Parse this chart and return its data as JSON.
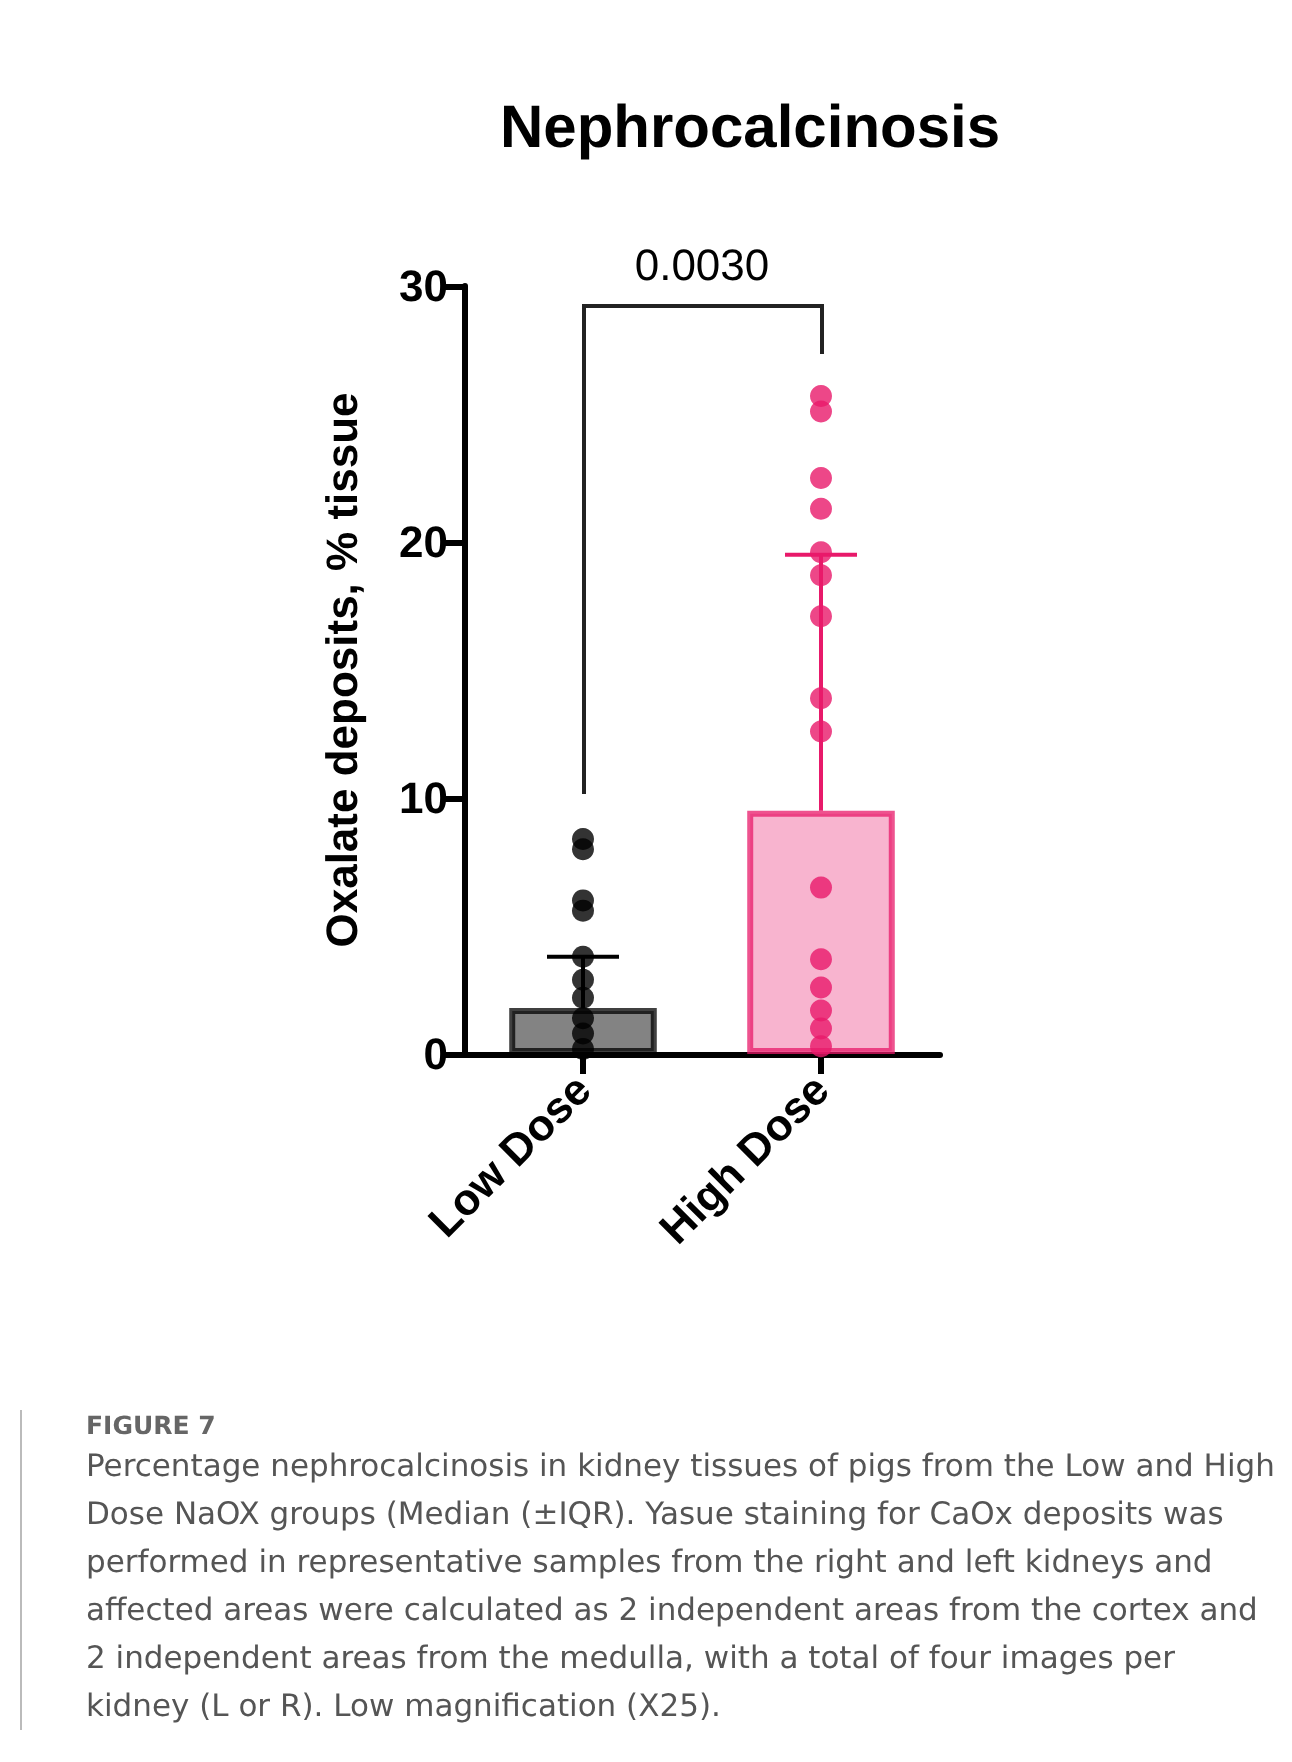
{
  "chart_data": {
    "type": "bar",
    "title": "Nephrocalcinosis",
    "ylabel": "Oxalate deposits, % tissue",
    "categories": [
      "Low Dose",
      "High Dose"
    ],
    "series": [
      {
        "colors": [
          "#5a5a5a",
          "#f59bbf"
        ],
        "values": [
          1.8,
          9.5
        ],
        "errors": [
          [
            1.8,
            3.8
          ],
          [
            9.5,
            19.5
          ]
        ]
      },
      {
        "type": "scatter",
        "color": "#000000",
        "x": [
          "Low Dose",
          "Low Dose",
          "Low Dose",
          "Low Dose",
          "Low Dose",
          "Low Dose",
          "Low Dose",
          "Low Dose",
          "Low Dose",
          "Low Dose"
        ],
        "values": [
          8.0,
          8.4,
          6.0,
          5.6,
          3.8,
          2.9,
          2.2,
          1.4,
          0.8,
          0.2
        ]
      },
      {
        "type": "scatter",
        "color": "#e8196a",
        "x": [
          "High Dose",
          "High Dose",
          "High Dose",
          "High Dose",
          "High Dose",
          "High Dose",
          "High Dose",
          "High Dose",
          "High Dose",
          "High Dose",
          "High Dose",
          "High Dose",
          "High Dose",
          "High Dose",
          "High Dose"
        ],
        "values": [
          25.1,
          25.7,
          22.5,
          21.3,
          19.6,
          18.7,
          17.1,
          13.9,
          12.6,
          6.5,
          3.7,
          2.6,
          1.7,
          1.0,
          0.3
        ]
      }
    ],
    "ylim": [
      0,
      30
    ],
    "yticks": [
      0,
      10,
      20,
      30
    ],
    "grid": false,
    "marker": "circle",
    "annotations": [
      "0.0030",
      "FIGURE 7",
      "Percentage nephrocalcinosis in kidney tissues of pigs from the Low and High Dose NaOX groups (Median (±IQR). Yasue staining for CaOx deposits was performed in representative samples from the right and left kidneys and affected areas were calculated as 2 independent areas from the cortex and 2 independent areas from the medulla, with a total of four images per kidney (L or R). Low magnification (X25)."
    ]
  }
}
